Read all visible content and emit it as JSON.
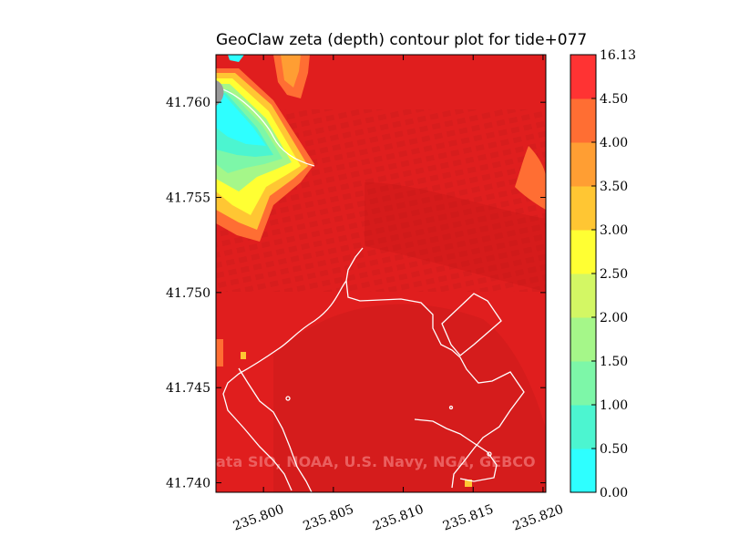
{
  "chart_data": {
    "type": "heatmap",
    "title": "GeoClaw zeta (depth) contour plot for tide+077",
    "xlabel": "",
    "ylabel": "",
    "xlim": [
      235.7966,
      235.8202
    ],
    "ylim": [
      41.7395,
      41.7625
    ],
    "x_ticks": [
      235.8,
      235.805,
      235.81,
      235.815,
      235.82
    ],
    "x_tick_labels": [
      "235.800",
      "235.805",
      "235.810",
      "235.815",
      "235.820"
    ],
    "y_ticks": [
      41.74,
      41.745,
      41.75,
      41.755,
      41.76
    ],
    "y_tick_labels": [
      "41.740",
      "41.745",
      "41.750",
      "41.755",
      "41.760"
    ],
    "colorbar": {
      "levels": [
        0.0,
        0.5,
        1.0,
        1.5,
        2.0,
        2.5,
        3.0,
        3.5,
        4.0,
        4.5,
        16.13
      ],
      "labels": [
        "0.00",
        "0.50",
        "1.00",
        "1.50",
        "2.00",
        "2.50",
        "3.00",
        "3.50",
        "4.00",
        "4.50",
        "16.13"
      ],
      "colors": [
        "#2effff",
        "#4cf5d0",
        "#7df7a8",
        "#a5f789",
        "#d3f764",
        "#ffff33",
        "#ffc633",
        "#ff9e33",
        "#ff6e33",
        "#ff3333"
      ]
    },
    "dominant_level": ">4.50",
    "grid": false,
    "watermark": "ata SIO, NOAA, U.S. Navy, NGA, GEBCO"
  },
  "colors": {
    "background": "#ffffff",
    "field_red": "#e51f1f",
    "shoreline": "#ffffff"
  }
}
